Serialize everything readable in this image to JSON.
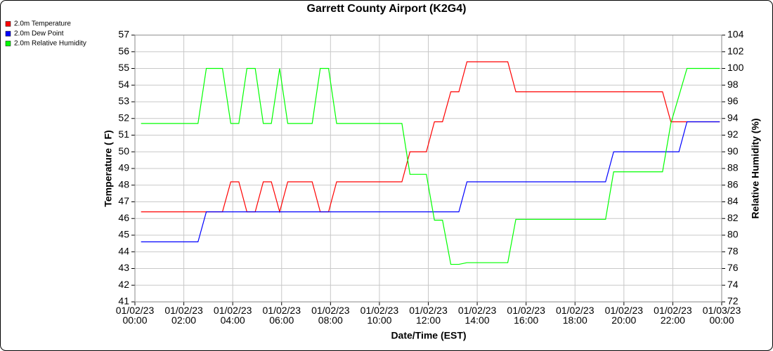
{
  "chart_data": {
    "type": "line",
    "title": "Garrett County Airport (K2G4)",
    "xlabel": "Date/Time (EST)",
    "ylabel": "Temperature ( F)",
    "y2label": "Relative Humidity (%)",
    "xlim": [
      0,
      24
    ],
    "xticks": [
      {
        "value": 0,
        "label": "01/02/23\n00:00"
      },
      {
        "value": 2,
        "label": "01/02/23\n02:00"
      },
      {
        "value": 4,
        "label": "01/02/23\n04:00"
      },
      {
        "value": 6,
        "label": "01/02/23\n06:00"
      },
      {
        "value": 8,
        "label": "01/02/23\n08:00"
      },
      {
        "value": 10,
        "label": "01/02/23\n10:00"
      },
      {
        "value": 12,
        "label": "01/02/23\n12:00"
      },
      {
        "value": 14,
        "label": "01/02/23\n14:00"
      },
      {
        "value": 16,
        "label": "01/02/23\n16:00"
      },
      {
        "value": 18,
        "label": "01/02/23\n18:00"
      },
      {
        "value": 20,
        "label": "01/02/23\n20:00"
      },
      {
        "value": 22,
        "label": "01/02/23\n22:00"
      },
      {
        "value": 24,
        "label": "01/03/23\n00:00"
      }
    ],
    "ylim": [
      41,
      57
    ],
    "yticks": [
      41,
      42,
      43,
      44,
      45,
      46,
      47,
      48,
      49,
      50,
      51,
      52,
      53,
      54,
      55,
      56,
      57
    ],
    "y2lim": [
      72,
      104
    ],
    "y2ticks": [
      72,
      74,
      76,
      78,
      80,
      82,
      84,
      86,
      88,
      90,
      92,
      94,
      96,
      98,
      100,
      102,
      104
    ],
    "grid": true,
    "legend": "top-left",
    "series": [
      {
        "name": "2.0m Temperature",
        "color": "#ff0000",
        "x": [
          0.25,
          3.58,
          3.92,
          4.25,
          4.58,
          4.92,
          5.25,
          5.58,
          5.92,
          6.25,
          7.25,
          7.58,
          7.92,
          8.25,
          10.92,
          11.25,
          11.92,
          12.25,
          12.58,
          12.92,
          13.25,
          13.58,
          15.25,
          15.58,
          21.58,
          21.92,
          23.92
        ],
        "values": [
          46.4,
          46.4,
          48.2,
          48.2,
          46.4,
          46.4,
          48.2,
          48.2,
          46.4,
          48.2,
          48.2,
          46.4,
          46.4,
          48.2,
          48.2,
          50.0,
          50.0,
          51.8,
          51.8,
          53.6,
          53.6,
          55.4,
          55.4,
          53.6,
          53.6,
          51.8,
          51.8
        ]
      },
      {
        "name": "2.0m Dew Point",
        "color": "#0000ff",
        "x": [
          0.25,
          2.58,
          2.92,
          13.25,
          13.58,
          19.25,
          19.58,
          22.25,
          22.58,
          23.92
        ],
        "values": [
          44.6,
          44.6,
          46.4,
          46.4,
          48.2,
          48.2,
          50.0,
          50.0,
          51.8,
          51.8
        ]
      },
      {
        "name": "2.0m Relative Humidity",
        "color": "#00ff00",
        "axis": "y2",
        "x": [
          0.25,
          2.58,
          2.92,
          3.58,
          3.92,
          4.25,
          4.58,
          4.92,
          5.25,
          5.58,
          5.92,
          6.25,
          7.25,
          7.58,
          7.92,
          8.25,
          10.92,
          11.25,
          11.92,
          12.25,
          12.58,
          12.92,
          13.25,
          13.58,
          15.25,
          15.58,
          19.25,
          19.58,
          21.58,
          21.92,
          22.58,
          23.92
        ],
        "values": [
          93.4,
          93.4,
          100,
          100,
          93.4,
          93.4,
          100,
          100,
          93.4,
          93.4,
          100,
          93.4,
          93.4,
          100,
          100,
          93.4,
          93.4,
          87.3,
          87.3,
          81.8,
          81.8,
          76.5,
          76.5,
          76.7,
          76.7,
          81.9,
          81.9,
          87.6,
          87.6,
          93.4,
          100,
          100
        ]
      }
    ]
  }
}
